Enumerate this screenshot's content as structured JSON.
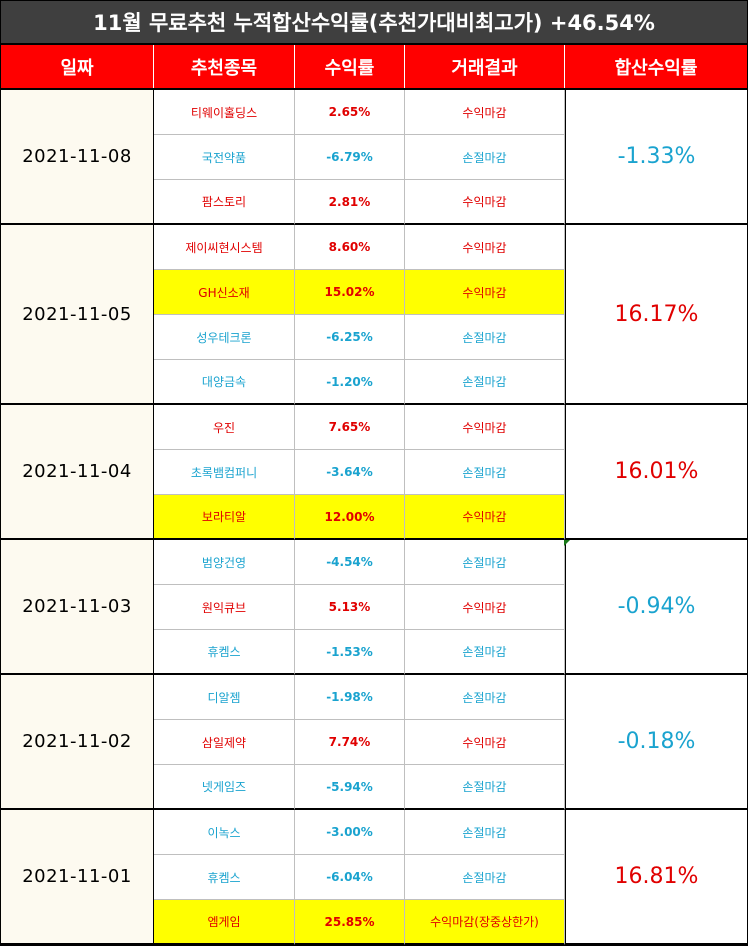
{
  "title": "11월 무료추천 누적합산수익률(추천가대비최고가) +46.54%",
  "headers": [
    "일짜",
    "추천종목",
    "수익률",
    "거래결과",
    "합산수익률"
  ],
  "colors": {
    "gain": "#e00000",
    "loss": "#1aa3cf",
    "highlight": "#ffff00",
    "header_bg": "#ff0000",
    "title_bg": "#3f3f3f"
  },
  "groups": [
    {
      "date": "2021-11-08",
      "total": "-1.33%",
      "total_sign": "loss",
      "rows": [
        {
          "stock": "티웨이홀딩스",
          "rate": "2.65%",
          "result": "수익마감",
          "sign": "win",
          "highlight": false
        },
        {
          "stock": "국전약품",
          "rate": "-6.79%",
          "result": "손절마감",
          "sign": "loss",
          "highlight": false
        },
        {
          "stock": "팜스토리",
          "rate": "2.81%",
          "result": "수익마감",
          "sign": "win",
          "highlight": false
        }
      ]
    },
    {
      "date": "2021-11-05",
      "total": "16.17%",
      "total_sign": "win",
      "rows": [
        {
          "stock": "제이씨현시스템",
          "rate": "8.60%",
          "result": "수익마감",
          "sign": "win",
          "highlight": false
        },
        {
          "stock": "GH신소재",
          "rate": "15.02%",
          "result": "수익마감",
          "sign": "win",
          "highlight": true
        },
        {
          "stock": "성우테크론",
          "rate": "-6.25%",
          "result": "손절마감",
          "sign": "loss",
          "highlight": false
        },
        {
          "stock": "대양금속",
          "rate": "-1.20%",
          "result": "손절마감",
          "sign": "loss",
          "highlight": false
        }
      ]
    },
    {
      "date": "2021-11-04",
      "total": "16.01%",
      "total_sign": "win",
      "rows": [
        {
          "stock": "우진",
          "rate": "7.65%",
          "result": "수익마감",
          "sign": "win",
          "highlight": false
        },
        {
          "stock": "초록뱀컴퍼니",
          "rate": "-3.64%",
          "result": "손절마감",
          "sign": "loss",
          "highlight": false
        },
        {
          "stock": "보라티알",
          "rate": "12.00%",
          "result": "수익마감",
          "sign": "win",
          "highlight": true
        }
      ]
    },
    {
      "date": "2021-11-03",
      "total": "-0.94%",
      "total_sign": "loss",
      "rows": [
        {
          "stock": "범양건영",
          "rate": "-4.54%",
          "result": "손절마감",
          "sign": "loss",
          "highlight": false
        },
        {
          "stock": "원익큐브",
          "rate": "5.13%",
          "result": "수익마감",
          "sign": "win",
          "highlight": false
        },
        {
          "stock": "휴켐스",
          "rate": "-1.53%",
          "result": "손절마감",
          "sign": "loss",
          "highlight": false
        }
      ]
    },
    {
      "date": "2021-11-02",
      "total": "-0.18%",
      "total_sign": "loss",
      "rows": [
        {
          "stock": "디알젬",
          "rate": "-1.98%",
          "result": "손절마감",
          "sign": "loss",
          "highlight": false
        },
        {
          "stock": "삼일제약",
          "rate": "7.74%",
          "result": "수익마감",
          "sign": "win",
          "highlight": false
        },
        {
          "stock": "넷게임즈",
          "rate": "-5.94%",
          "result": "손절마감",
          "sign": "loss",
          "highlight": false
        }
      ]
    },
    {
      "date": "2021-11-01",
      "total": "16.81%",
      "total_sign": "win",
      "rows": [
        {
          "stock": "이녹스",
          "rate": "-3.00%",
          "result": "손절마감",
          "sign": "loss",
          "highlight": false
        },
        {
          "stock": "휴켐스",
          "rate": "-6.04%",
          "result": "손절마감",
          "sign": "loss",
          "highlight": false
        },
        {
          "stock": "엠게임",
          "rate": "25.85%",
          "result": "수익마감(장중상한가)",
          "sign": "win",
          "highlight": true
        }
      ]
    }
  ]
}
